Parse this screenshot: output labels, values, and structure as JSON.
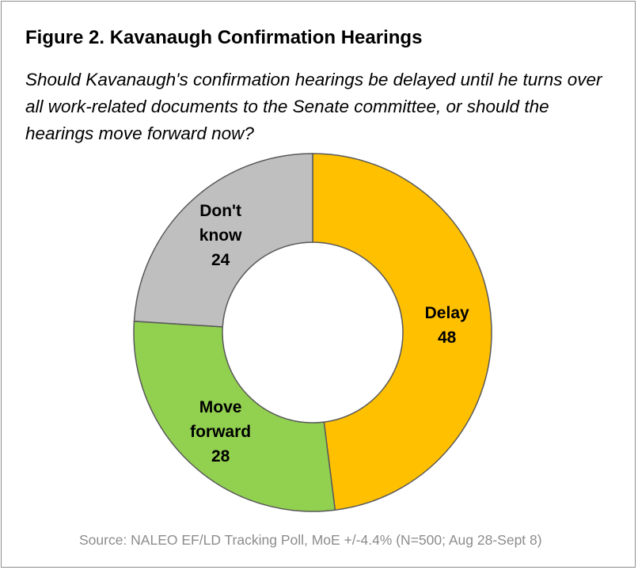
{
  "chart_data": {
    "type": "pie",
    "title": "Figure 2. Kavanaugh Confirmation Hearings",
    "subtitle": "Should Kavanaugh's confirmation hearings be delayed until he turns over all work-related documents to the Senate committee, or should the hearings move forward now?",
    "slices": [
      {
        "label_lines": [
          "Delay"
        ],
        "value": 48,
        "value_label": "48",
        "color": "#ffc000"
      },
      {
        "label_lines": [
          "Move",
          "forward"
        ],
        "value": 28,
        "value_label": "28",
        "color": "#92d050"
      },
      {
        "label_lines": [
          "Don't",
          "know"
        ],
        "value": 24,
        "value_label": "24",
        "color": "#bfbfbf"
      }
    ],
    "donut": true,
    "source": "Source: NALEO EF/LD Tracking Poll, MoE +/-4.4% (N=500; Aug 28-Sept 8)"
  }
}
